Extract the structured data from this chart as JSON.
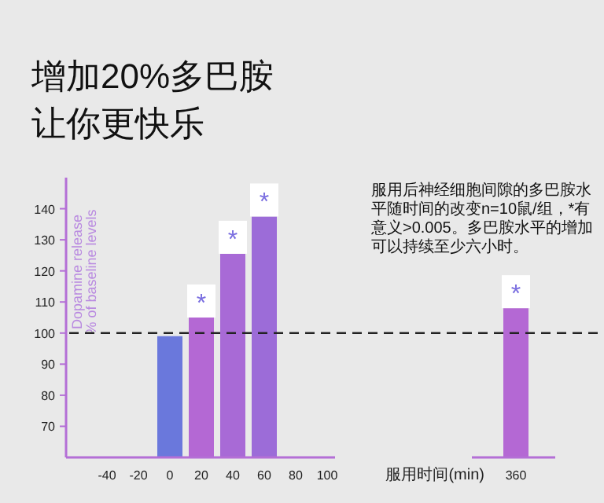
{
  "chart_data": {
    "type": "bar",
    "title": "增加20%多巴胺让你更快乐",
    "ylabel": "Dopamine release\n% of baseline levels",
    "xlabel": "服用时间(min)",
    "categories": [
      "-40",
      "-20",
      "0",
      "20",
      "40",
      "60",
      "80",
      "100",
      null,
      null,
      null,
      null,
      null,
      "360"
    ],
    "values": [
      null,
      null,
      99,
      105,
      125.5,
      137.5,
      null,
      null,
      null,
      null,
      null,
      null,
      null,
      108
    ],
    "colors": [
      null,
      null,
      "#6a78dc",
      "#b468d4",
      "#a86ad6",
      "#9c6cd8",
      null,
      null,
      null,
      null,
      null,
      null,
      null,
      "#b468d4"
    ],
    "ylim": [
      60,
      150
    ],
    "yticks": [
      70,
      80,
      90,
      100,
      110,
      120,
      130,
      140
    ],
    "ref_lines": [
      {
        "axis": "y",
        "value": 100,
        "line_style": "dashed"
      }
    ],
    "annotations": [
      "服用后神经细胞间隙的多巴胺水平随时间的改变n=10鼠/组，*有意义>0.005。多巴胺水平的增加可以持续至少六小时。",
      {
        "text": "*",
        "x": "20",
        "y": 105
      },
      {
        "text": "*",
        "x": "40",
        "y": 125.5
      },
      {
        "text": "*",
        "x": "60",
        "y": 137.5
      },
      {
        "text": "*",
        "x": "360",
        "y": 108
      }
    ]
  }
}
